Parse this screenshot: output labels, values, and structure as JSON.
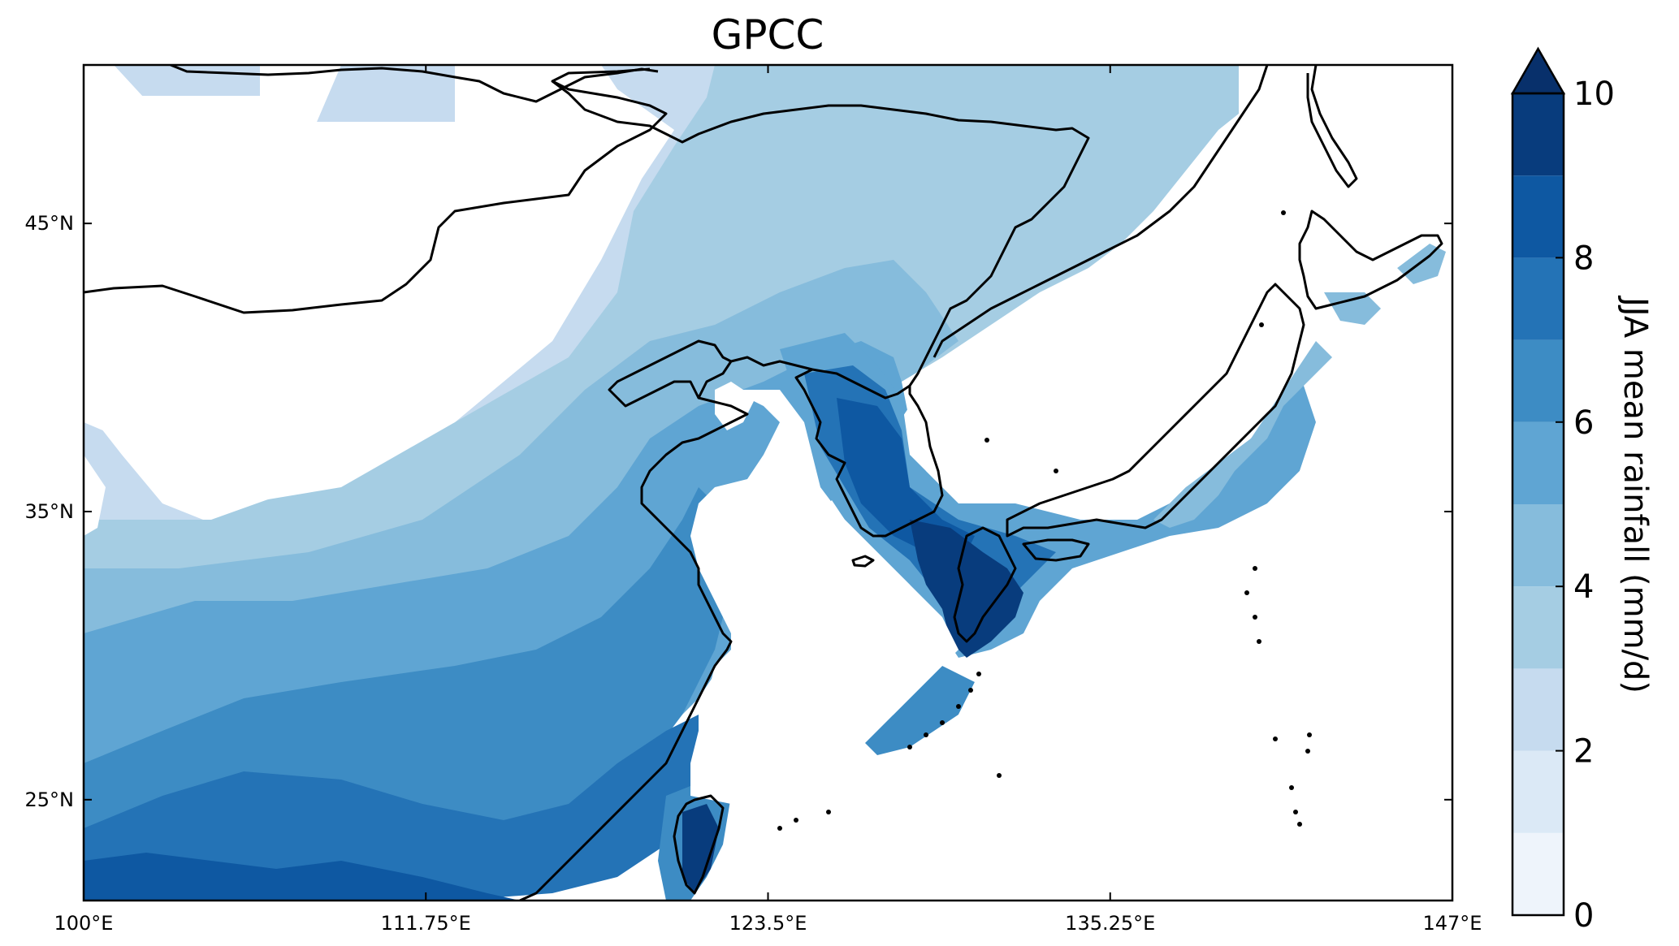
{
  "title": "GPCC",
  "season_variable": "JJA mean rainfall",
  "x_ticks": [
    {
      "lon": 100,
      "label": "100°E"
    },
    {
      "lon": 111.75,
      "label": "111.75°E"
    },
    {
      "lon": 123.5,
      "label": "123.5°E"
    },
    {
      "lon": 135.25,
      "label": "135.25°E"
    },
    {
      "lon": 147,
      "label": "147°E"
    }
  ],
  "y_ticks": [
    {
      "lat": 45,
      "label": "45°N"
    },
    {
      "lat": 35,
      "label": "35°N"
    },
    {
      "lat": 25,
      "label": "25°N"
    }
  ],
  "extent": {
    "lon_min": 100,
    "lon_max": 147,
    "lat_min": 21.5,
    "lat_max": 50.5
  },
  "colorbar": {
    "label": "JJA mean rainfall (mm/d)",
    "min": 0,
    "max": 10,
    "extend": "max",
    "ticks": [
      {
        "value": 0,
        "label": "0"
      },
      {
        "value": 2,
        "label": "2"
      },
      {
        "value": 4,
        "label": "4"
      },
      {
        "value": 6,
        "label": "6"
      },
      {
        "value": 8,
        "label": "8"
      },
      {
        "value": 10,
        "label": "10"
      }
    ],
    "levels": [
      {
        "from": 0,
        "to": 1,
        "color": "#eef4fb"
      },
      {
        "from": 1,
        "to": 2,
        "color": "#dbe9f6"
      },
      {
        "from": 2,
        "to": 3,
        "color": "#c6dbef"
      },
      {
        "from": 3,
        "to": 4,
        "color": "#a5cde3"
      },
      {
        "from": 4,
        "to": 5,
        "color": "#86bcdc"
      },
      {
        "from": 5,
        "to": 6,
        "color": "#5fa5d3"
      },
      {
        "from": 6,
        "to": 7,
        "color": "#3d8cc4"
      },
      {
        "from": 7,
        "to": 8,
        "color": "#2473b6"
      },
      {
        "from": 8,
        "to": 9,
        "color": "#0e58a2"
      },
      {
        "from": 9,
        "to": 10,
        "color": "#083c7d"
      }
    ],
    "over_color": "#08306b"
  }
}
